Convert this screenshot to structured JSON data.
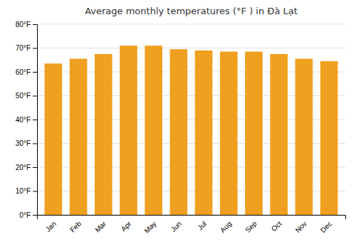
{
  "chart_data": {
    "type": "bar",
    "title": "Average monthly temperatures (°F ) in Đà Lạt",
    "categories": [
      "Jan",
      "Feb",
      "Mar",
      "Apr",
      "May",
      "Jun",
      "Jul",
      "Aug",
      "Sep",
      "Oct",
      "Nov",
      "Dec"
    ],
    "values": [
      63.5,
      65.5,
      67.5,
      71.0,
      71.0,
      69.5,
      69.0,
      68.5,
      68.5,
      67.5,
      65.5,
      64.5
    ],
    "color": "#F0A020",
    "ylim": [
      0,
      80
    ],
    "yticks": [
      {
        "value": 0,
        "label": "0°F"
      },
      {
        "value": 10,
        "label": "10°F"
      },
      {
        "value": 20,
        "label": "20°F"
      },
      {
        "value": 30,
        "label": "30°F"
      },
      {
        "value": 40,
        "label": "40°F"
      },
      {
        "value": 50,
        "label": "50°F"
      },
      {
        "value": 60,
        "label": "60°F"
      },
      {
        "value": 70,
        "label": "70°F"
      },
      {
        "value": 80,
        "label": "80°F"
      }
    ],
    "grid": true
  }
}
